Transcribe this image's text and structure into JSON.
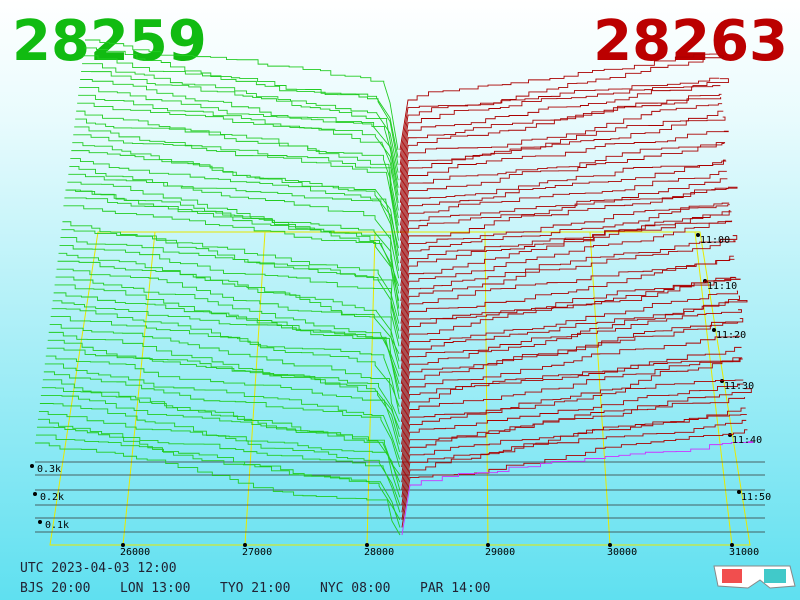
{
  "header": {
    "bid": "28259",
    "ask": "28263"
  },
  "price_axis": {
    "ticks": [
      "26000",
      "27000",
      "28000",
      "29000",
      "30000",
      "31000"
    ]
  },
  "depth_axis": {
    "ticks": [
      "0.3k",
      "0.2k",
      "0.1k"
    ]
  },
  "time_axis": {
    "ticks": [
      "11:00",
      "11:10",
      "11:20",
      "11:30",
      "11:40",
      "11:50"
    ]
  },
  "footer": {
    "utc": "UTC 2023-04-03 12:00",
    "zones": [
      "BJS 20:00",
      "LON 13:00",
      "TYO 21:00",
      "NYC 08:00",
      "PAR 14:00"
    ]
  }
}
